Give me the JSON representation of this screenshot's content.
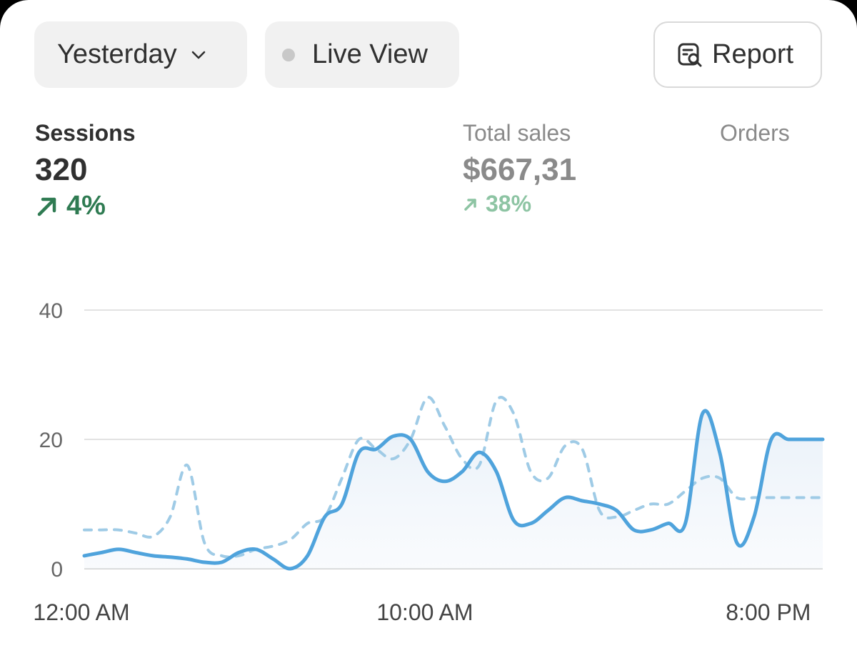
{
  "toolbar": {
    "date_range_label": "Yesterday",
    "live_view_label": "Live View",
    "report_label": "Report"
  },
  "metrics": {
    "sessions": {
      "label": "Sessions",
      "value": "320",
      "change": "4%"
    },
    "total_sales": {
      "label": "Total sales",
      "value": "$667,31",
      "change": "38%"
    },
    "orders": {
      "label": "Orders"
    }
  },
  "colors": {
    "current_series": "#4fa3dc",
    "comparison_series": "#9fcbe6",
    "positive_change": "#2f7b52"
  },
  "chart_data": {
    "type": "line",
    "title": "",
    "xlabel": "",
    "ylabel": "",
    "ylim": [
      0,
      40
    ],
    "yticks": [
      0,
      20,
      40
    ],
    "xtick_labels": [
      "12:00 AM",
      "10:00 AM",
      "8:00 PM"
    ],
    "x": [
      "12:00 AM",
      "12:30 AM",
      "1:00 AM",
      "1:30 AM",
      "2:00 AM",
      "2:30 AM",
      "3:00 AM",
      "3:30 AM",
      "4:00 AM",
      "4:30 AM",
      "5:00 AM",
      "5:30 AM",
      "6:00 AM",
      "6:30 AM",
      "7:00 AM",
      "7:30 AM",
      "8:00 AM",
      "8:30 AM",
      "9:00 AM",
      "9:30 AM",
      "10:00 AM",
      "10:30 AM",
      "11:00 AM",
      "11:30 AM",
      "12:00 PM",
      "12:30 PM",
      "1:00 PM",
      "1:30 PM",
      "2:00 PM",
      "2:30 PM",
      "3:00 PM",
      "3:30 PM",
      "4:00 PM",
      "4:30 PM",
      "5:00 PM",
      "5:30 PM",
      "6:00 PM",
      "6:30 PM",
      "7:00 PM",
      "7:30 PM",
      "8:00 PM",
      "8:30 PM",
      "9:00 PM",
      "9:30 PM"
    ],
    "series": [
      {
        "values": [
          2,
          2.5,
          3,
          2.5,
          2,
          1.8,
          1.5,
          1,
          1,
          2.5,
          3,
          1.5,
          0,
          2,
          8,
          10,
          18,
          18.5,
          20.5,
          20,
          15,
          13.5,
          15,
          18,
          15,
          7.5,
          7,
          9,
          11,
          10.5,
          10,
          9,
          6,
          6,
          7,
          7,
          24,
          18,
          4,
          8,
          20,
          20,
          20,
          20
        ]
      },
      {
        "values": [
          6,
          6,
          6,
          5.5,
          5,
          8,
          16,
          4,
          2,
          2,
          3,
          3.5,
          4.5,
          7,
          8,
          14,
          20,
          18.5,
          17,
          20,
          26.5,
          22,
          17,
          16,
          26,
          24,
          15,
          14,
          19,
          18.5,
          9,
          8,
          9,
          10,
          10,
          12,
          14,
          14,
          11,
          11,
          11,
          11,
          11,
          11
        ]
      }
    ]
  }
}
